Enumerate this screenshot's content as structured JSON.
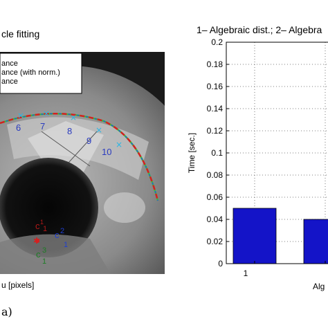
{
  "left_panel": {
    "title": "cle fitting",
    "legend": [
      "ance",
      "ance (with norm.)",
      "ance"
    ],
    "point_labels": [
      "6",
      "7",
      "8",
      "9",
      "10"
    ],
    "center_labels": [
      {
        "letter": "c",
        "sup": "1",
        "sub": "1",
        "color": "#b01818"
      },
      {
        "letter": "c",
        "sup": "2",
        "sub": "1",
        "color": "#1f3fd0"
      },
      {
        "letter": "c",
        "sup": "3",
        "sub": "1",
        "color": "#1c7d24"
      }
    ],
    "xlabel": "u [pixels]",
    "panel_label": "a)"
  },
  "chart_data": {
    "type": "bar",
    "title": "1– Algebraic dist.; 2– Algebra",
    "categories": [
      "1",
      "Alg"
    ],
    "values": [
      0.05,
      0.04
    ],
    "ylabel": "Time [sec.]",
    "ylim": [
      0,
      0.2
    ],
    "yticks": [
      "0",
      "0.02",
      "0.04",
      "0.06",
      "0.08",
      "0.1",
      "0.12",
      "0.14",
      "0.16",
      "0.18",
      "0.2"
    ],
    "grid": true,
    "bar_color": "#1414c8"
  }
}
